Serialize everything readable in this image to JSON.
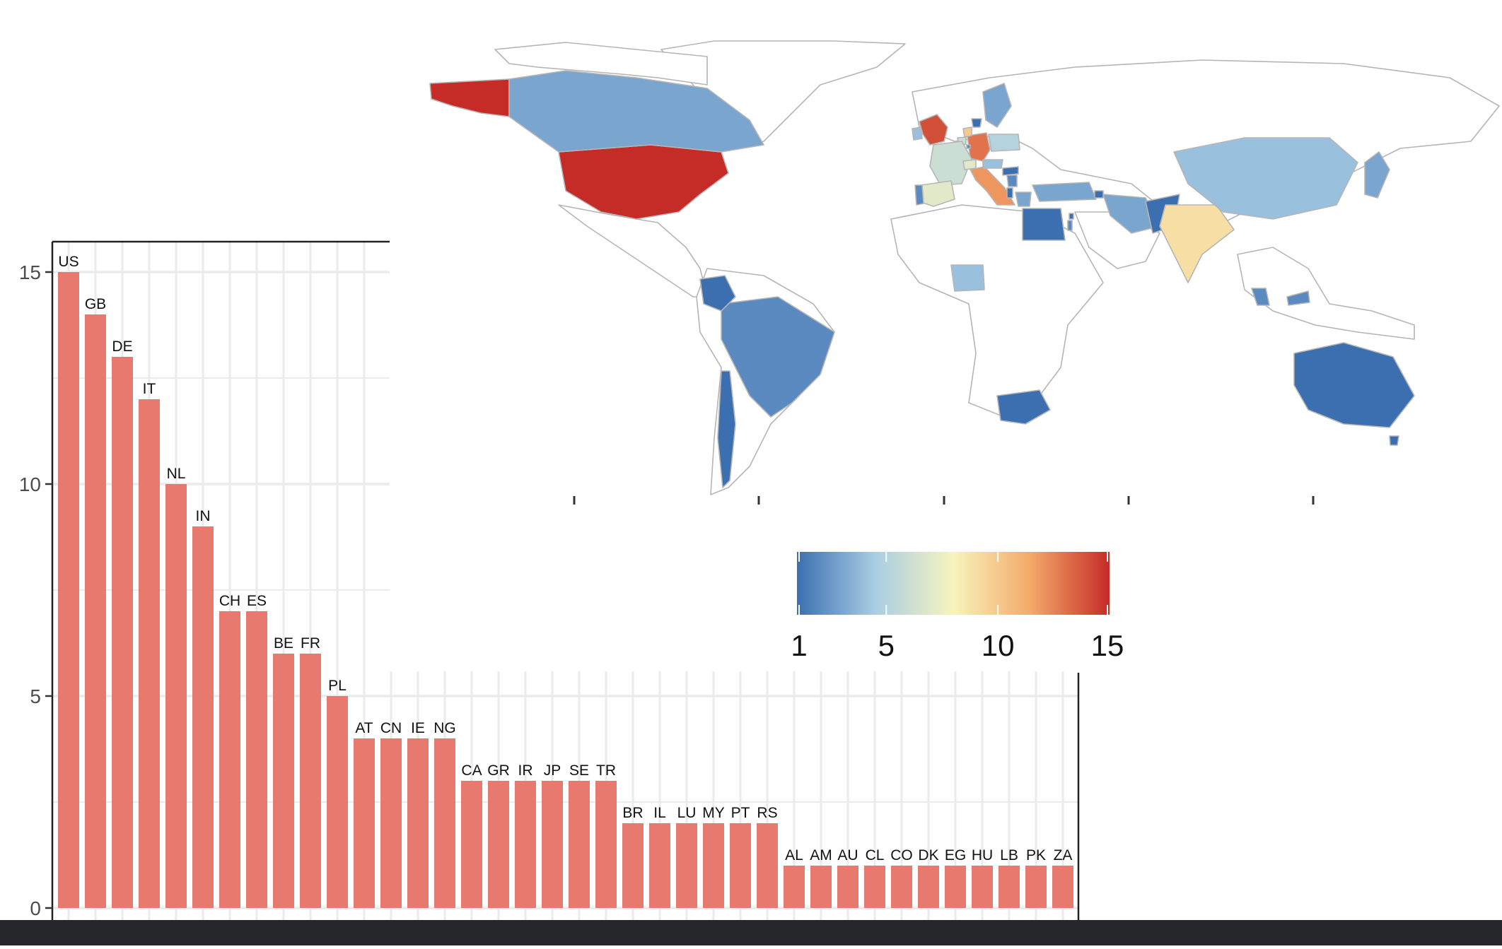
{
  "colors": {
    "bar": "#e8796f",
    "grid": "#ebebeb",
    "axis": "#222222",
    "ocean_bg": "#ffffff",
    "land_outline": "#b5b5b5",
    "scale": [
      "#3b6fb0",
      "#a9cde4",
      "#f7f4bd",
      "#f4a869",
      "#c52b27"
    ],
    "footer": "#26272a"
  },
  "chart_data": [
    {
      "type": "bar",
      "categories": [
        "US",
        "GB",
        "DE",
        "IT",
        "NL",
        "IN",
        "CH",
        "ES",
        "BE",
        "FR",
        "PL",
        "AT",
        "CN",
        "IE",
        "NG",
        "CA",
        "GR",
        "IR",
        "JP",
        "SE",
        "TR",
        "BR",
        "IL",
        "LU",
        "MY",
        "PT",
        "RS",
        "AL",
        "AM",
        "AU",
        "CL",
        "CO",
        "DK",
        "EG",
        "HU",
        "LB",
        "PK",
        "ZA"
      ],
      "values": [
        15,
        14,
        13,
        12,
        10,
        9,
        7,
        7,
        6,
        6,
        5,
        4,
        4,
        4,
        4,
        3,
        3,
        3,
        3,
        3,
        3,
        2,
        2,
        2,
        2,
        2,
        2,
        1,
        1,
        1,
        1,
        1,
        1,
        1,
        1,
        1,
        1,
        1
      ],
      "ylim": [
        0,
        15.5
      ],
      "yticks": [
        "0",
        "5",
        "10",
        "15"
      ],
      "grid": true
    },
    {
      "type": "heatmap",
      "map": "world choropleth",
      "legend": {
        "ticks": [
          "1",
          "5",
          "10",
          "15"
        ],
        "range": [
          1,
          15
        ],
        "palette": "RdYlBu reversed"
      },
      "regions": [
        {
          "code": "US",
          "value": 15
        },
        {
          "code": "GB",
          "value": 14
        },
        {
          "code": "DE",
          "value": 13
        },
        {
          "code": "IT",
          "value": 12
        },
        {
          "code": "NL",
          "value": 10
        },
        {
          "code": "IN",
          "value": 9
        },
        {
          "code": "CH",
          "value": 7
        },
        {
          "code": "ES",
          "value": 7
        },
        {
          "code": "BE",
          "value": 6
        },
        {
          "code": "FR",
          "value": 6
        },
        {
          "code": "PL",
          "value": 5
        },
        {
          "code": "AT",
          "value": 4
        },
        {
          "code": "CN",
          "value": 4
        },
        {
          "code": "IE",
          "value": 4
        },
        {
          "code": "NG",
          "value": 4
        },
        {
          "code": "CA",
          "value": 3
        },
        {
          "code": "GR",
          "value": 3
        },
        {
          "code": "IR",
          "value": 3
        },
        {
          "code": "JP",
          "value": 3
        },
        {
          "code": "SE",
          "value": 3
        },
        {
          "code": "TR",
          "value": 3
        },
        {
          "code": "BR",
          "value": 2
        },
        {
          "code": "IL",
          "value": 2
        },
        {
          "code": "LU",
          "value": 2
        },
        {
          "code": "MY",
          "value": 2
        },
        {
          "code": "PT",
          "value": 2
        },
        {
          "code": "RS",
          "value": 2
        },
        {
          "code": "AL",
          "value": 1
        },
        {
          "code": "AM",
          "value": 1
        },
        {
          "code": "AU",
          "value": 1
        },
        {
          "code": "CL",
          "value": 1
        },
        {
          "code": "CO",
          "value": 1
        },
        {
          "code": "DK",
          "value": 1
        },
        {
          "code": "EG",
          "value": 1
        },
        {
          "code": "HU",
          "value": 1
        },
        {
          "code": "LB",
          "value": 1
        },
        {
          "code": "PK",
          "value": 1
        },
        {
          "code": "ZA",
          "value": 1
        }
      ]
    }
  ]
}
